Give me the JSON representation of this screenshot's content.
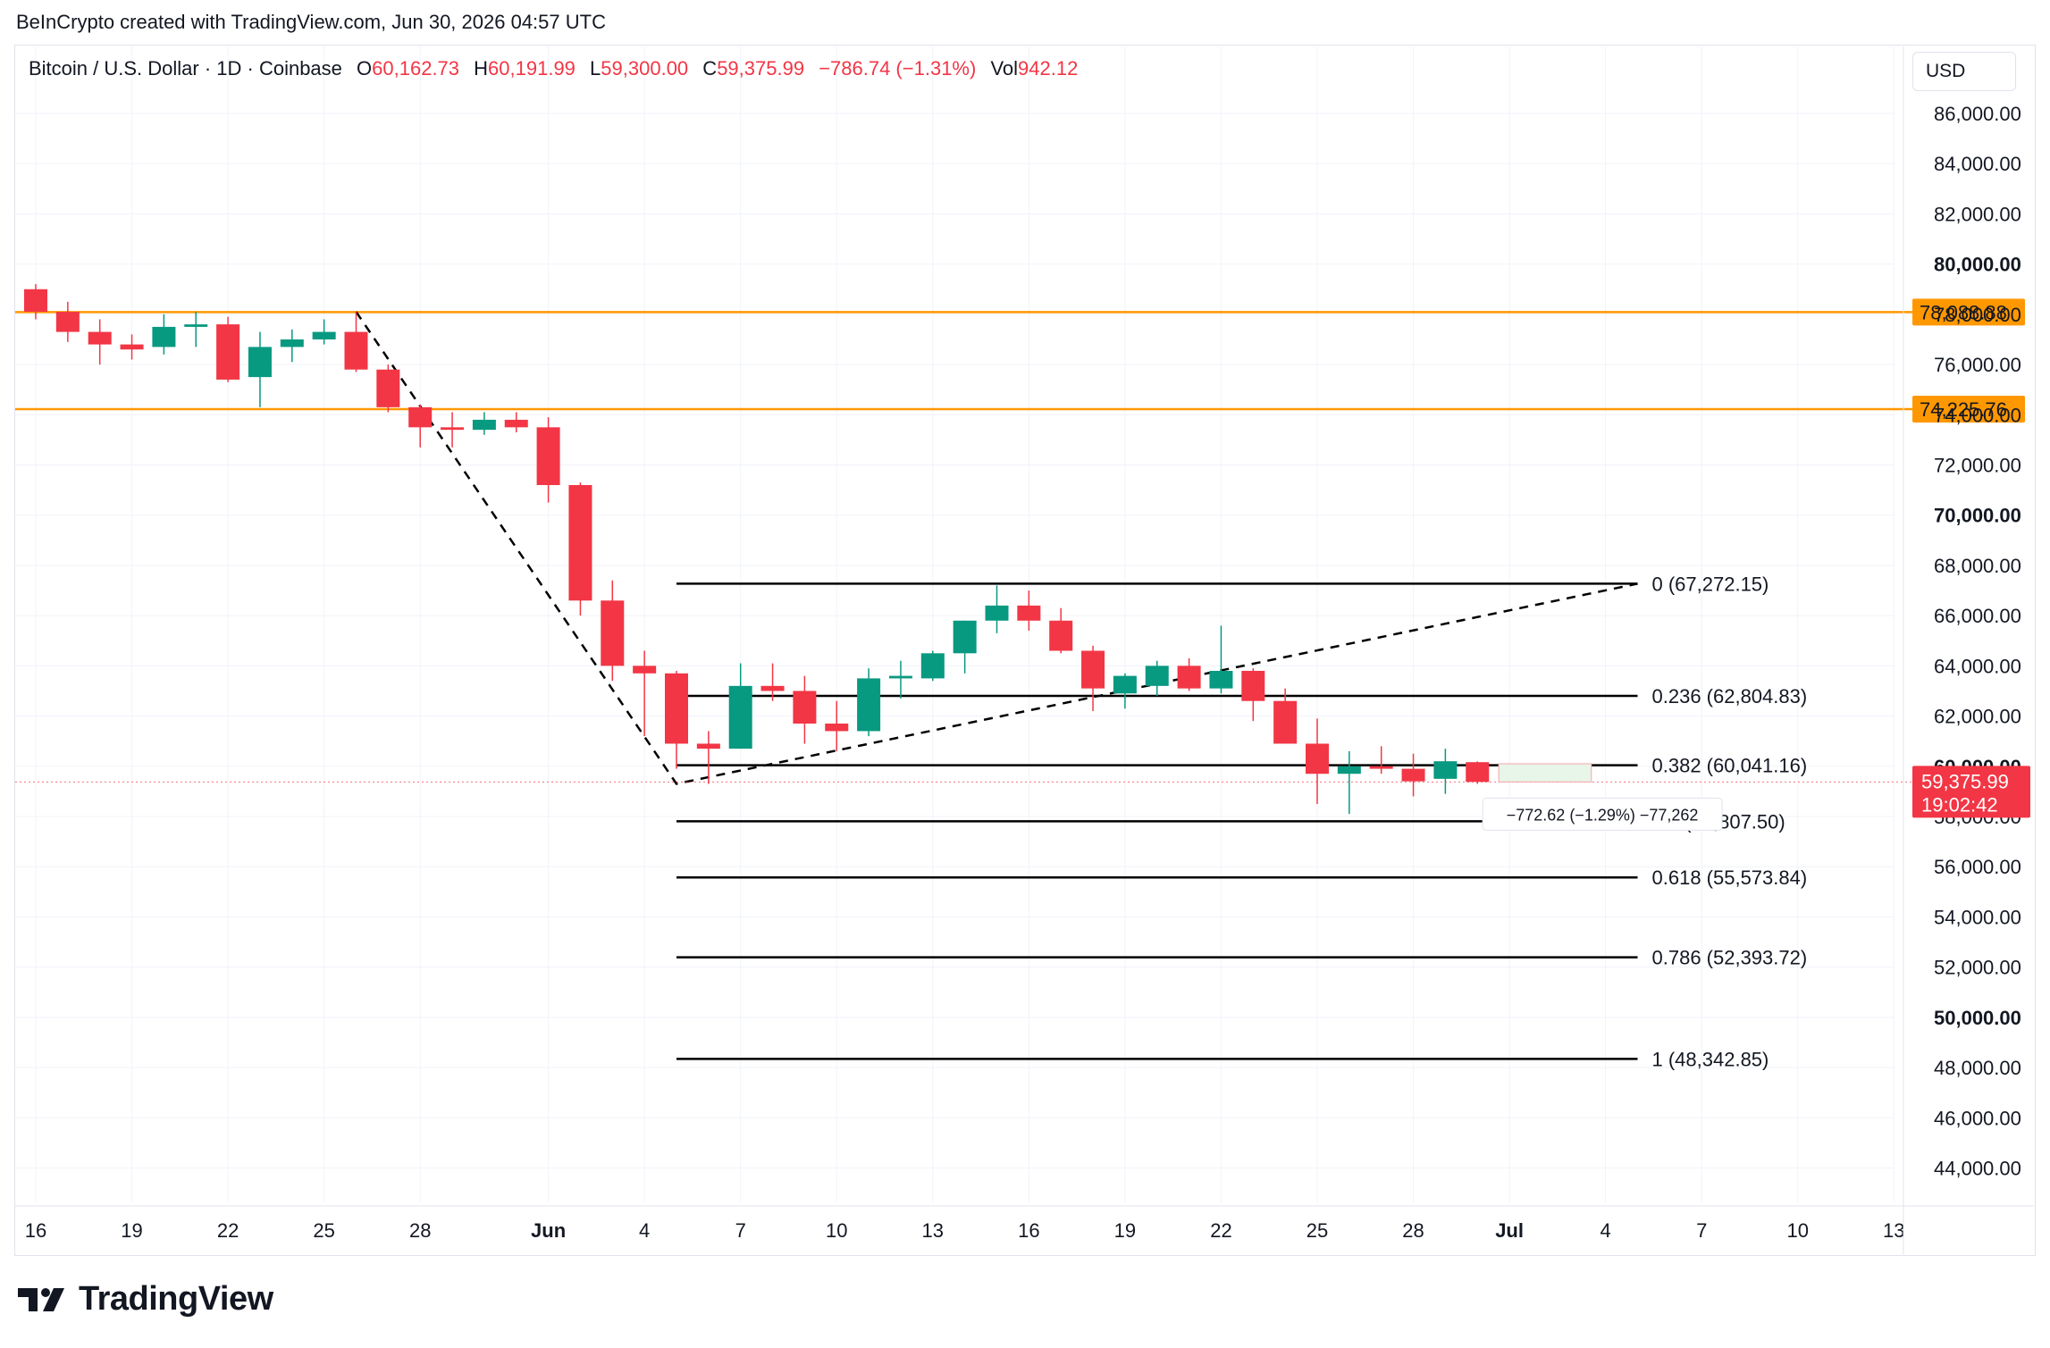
{
  "credit": "BeInCrypto created with TradingView.com, Jun 30, 2026 04:57 UTC",
  "legend": {
    "symbol": "Bitcoin / U.S. Dollar · 1D · Coinbase",
    "o_label": "O",
    "o": "60,162.73",
    "h_label": "H",
    "h": "60,191.99",
    "l_label": "L",
    "l": "59,300.00",
    "c_label": "C",
    "c": "59,375.99",
    "change": "−786.74 (−1.31%)",
    "vol_label": "Vol",
    "vol": "942.12"
  },
  "currency": "USD",
  "logo": {
    "text": "TradingView"
  },
  "colors": {
    "up": "#089981",
    "down": "#f23645",
    "level": "#ff9800",
    "grid": "#f0f3fa",
    "fib": "#000000"
  },
  "chart_data": {
    "type": "candlestick",
    "title": "",
    "ylim": [
      42000,
      89000
    ],
    "y_ticks": [
      44000,
      46000,
      48000,
      50000,
      52000,
      54000,
      56000,
      58000,
      60000,
      62000,
      64000,
      66000,
      68000,
      70000,
      72000,
      74000,
      76000,
      78000,
      80000,
      82000,
      84000,
      86000
    ],
    "y_tick_labels": [
      "44,000.00",
      "46,000.00",
      "48,000.00",
      "50,000.00",
      "52,000.00",
      "54,000.00",
      "56,000.00",
      "58,000.00",
      "60,000.00",
      "62,000.00",
      "64,000.00",
      "66,000.00",
      "68,000.00",
      "70,000.00",
      "72,000.00",
      "74,000.00",
      "76,000.00",
      "78,000.00",
      "80,000.00",
      "82,000.00",
      "84,000.00",
      "86,000.00"
    ],
    "y_tick_bold": [
      50000,
      60000,
      70000,
      80000
    ],
    "x_ticks": [
      {
        "day": 0,
        "label": "16"
      },
      {
        "day": 3,
        "label": "19"
      },
      {
        "day": 6,
        "label": "22"
      },
      {
        "day": 9,
        "label": "25"
      },
      {
        "day": 12,
        "label": "28"
      },
      {
        "day": 16,
        "label": "Jun",
        "bold": true
      },
      {
        "day": 19,
        "label": "4"
      },
      {
        "day": 22,
        "label": "7"
      },
      {
        "day": 25,
        "label": "10"
      },
      {
        "day": 28,
        "label": "13"
      },
      {
        "day": 31,
        "label": "16"
      },
      {
        "day": 34,
        "label": "19"
      },
      {
        "day": 37,
        "label": "22"
      },
      {
        "day": 40,
        "label": "25"
      },
      {
        "day": 43,
        "label": "28"
      },
      {
        "day": 46,
        "label": "Jul",
        "bold": true
      },
      {
        "day": 49,
        "label": "4"
      },
      {
        "day": 52,
        "label": "7"
      },
      {
        "day": 55,
        "label": "10"
      },
      {
        "day": 58,
        "label": "13"
      }
    ],
    "candles": [
      {
        "o": 79000,
        "h": 79200,
        "l": 77800,
        "c": 78100
      },
      {
        "o": 78100,
        "h": 78500,
        "l": 76900,
        "c": 77300
      },
      {
        "o": 77300,
        "h": 77800,
        "l": 76000,
        "c": 76800
      },
      {
        "o": 76800,
        "h": 77200,
        "l": 76200,
        "c": 76600
      },
      {
        "o": 76700,
        "h": 78000,
        "l": 76400,
        "c": 77500
      },
      {
        "o": 77500,
        "h": 78100,
        "l": 76700,
        "c": 77600
      },
      {
        "o": 77600,
        "h": 77900,
        "l": 75300,
        "c": 75400
      },
      {
        "o": 75500,
        "h": 77300,
        "l": 74300,
        "c": 76700
      },
      {
        "o": 76700,
        "h": 77400,
        "l": 76100,
        "c": 77000
      },
      {
        "o": 77000,
        "h": 77800,
        "l": 76800,
        "c": 77300
      },
      {
        "o": 77300,
        "h": 78100,
        "l": 75700,
        "c": 75800
      },
      {
        "o": 75800,
        "h": 76000,
        "l": 74100,
        "c": 74300
      },
      {
        "o": 74300,
        "h": 74400,
        "l": 72700,
        "c": 73500
      },
      {
        "o": 73500,
        "h": 74100,
        "l": 72700,
        "c": 73400
      },
      {
        "o": 73400,
        "h": 74100,
        "l": 73200,
        "c": 73800
      },
      {
        "o": 73800,
        "h": 74100,
        "l": 73300,
        "c": 73500
      },
      {
        "o": 73500,
        "h": 73900,
        "l": 70500,
        "c": 71200
      },
      {
        "o": 71200,
        "h": 71300,
        "l": 66000,
        "c": 66600
      },
      {
        "o": 66600,
        "h": 67400,
        "l": 63400,
        "c": 64000
      },
      {
        "o": 64000,
        "h": 64600,
        "l": 61200,
        "c": 63700
      },
      {
        "o": 63700,
        "h": 63800,
        "l": 59900,
        "c": 60900
      },
      {
        "o": 60900,
        "h": 61400,
        "l": 59300,
        "c": 60700
      },
      {
        "o": 60700,
        "h": 64100,
        "l": 60700,
        "c": 63200
      },
      {
        "o": 63200,
        "h": 64100,
        "l": 62600,
        "c": 63000
      },
      {
        "o": 63000,
        "h": 63600,
        "l": 60900,
        "c": 61700
      },
      {
        "o": 61700,
        "h": 62600,
        "l": 60600,
        "c": 61400
      },
      {
        "o": 61400,
        "h": 63900,
        "l": 61200,
        "c": 63500
      },
      {
        "o": 63500,
        "h": 64200,
        "l": 62700,
        "c": 63600
      },
      {
        "o": 63500,
        "h": 64600,
        "l": 63400,
        "c": 64500
      },
      {
        "o": 64500,
        "h": 65800,
        "l": 63700,
        "c": 65800
      },
      {
        "o": 65800,
        "h": 67200,
        "l": 65300,
        "c": 66400
      },
      {
        "o": 66400,
        "h": 67000,
        "l": 65400,
        "c": 65800
      },
      {
        "o": 65800,
        "h": 66300,
        "l": 64500,
        "c": 64600
      },
      {
        "o": 64600,
        "h": 64800,
        "l": 62200,
        "c": 63100
      },
      {
        "o": 62900,
        "h": 63700,
        "l": 62300,
        "c": 63600
      },
      {
        "o": 63200,
        "h": 64200,
        "l": 62800,
        "c": 64000
      },
      {
        "o": 64000,
        "h": 64300,
        "l": 63000,
        "c": 63100
      },
      {
        "o": 63100,
        "h": 65600,
        "l": 62900,
        "c": 63800
      },
      {
        "o": 63800,
        "h": 63900,
        "l": 61800,
        "c": 62600
      },
      {
        "o": 62600,
        "h": 63100,
        "l": 60900,
        "c": 60900
      },
      {
        "o": 60900,
        "h": 61900,
        "l": 58500,
        "c": 59700
      },
      {
        "o": 59700,
        "h": 60600,
        "l": 58100,
        "c": 60000
      },
      {
        "o": 60000,
        "h": 60800,
        "l": 59700,
        "c": 59900
      },
      {
        "o": 59900,
        "h": 60500,
        "l": 58800,
        "c": 59400
      },
      {
        "o": 59500,
        "h": 60700,
        "l": 58900,
        "c": 60200
      },
      {
        "o": 60162.73,
        "h": 60191.99,
        "l": 59300,
        "c": 59375.99
      }
    ],
    "levels": [
      {
        "value": 78088.88,
        "label": "78,088.88"
      },
      {
        "value": 74225.76,
        "label": "74,225.76"
      }
    ],
    "fib": [
      {
        "value": 67272.15,
        "label": "0 (67,272.15)"
      },
      {
        "value": 62804.83,
        "label": "0.236 (62,804.83)"
      },
      {
        "value": 60041.16,
        "label": "0.382 (60,041.16)"
      },
      {
        "value": 57807.5,
        "label": "0.5 (57,807.50)"
      },
      {
        "value": 55573.84,
        "label": "0.618 (55,573.84)"
      },
      {
        "value": 52393.72,
        "label": "0.786 (52,393.72)"
      },
      {
        "value": 48342.85,
        "label": "1 (48,342.85)"
      }
    ],
    "fib_start_day": 20,
    "fib_end_day": 50,
    "trend_line": [
      {
        "day": 10,
        "value": 78100
      },
      {
        "day": 20,
        "value": 59300
      },
      {
        "day": 50,
        "value": 67272.15
      }
    ],
    "last_price": {
      "value": 59375.99,
      "label": "59,375.99",
      "timer": "19:02:42"
    },
    "measure": {
      "text": "−772.62 (−1.29%) −77,262",
      "from_day": 46,
      "to_day": 48
    }
  }
}
